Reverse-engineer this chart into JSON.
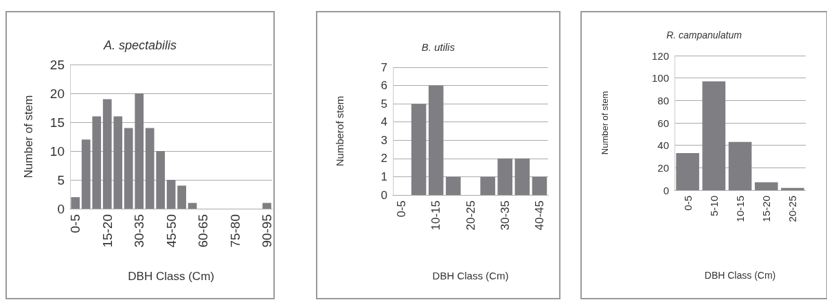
{
  "chart_data": [
    {
      "type": "bar",
      "title": "A. spectabilis",
      "xlabel": "DBH Class (Cm)",
      "ylabel": "Number of stem",
      "categories": [
        "0-5",
        null,
        null,
        "15-20",
        null,
        null,
        "30-35",
        null,
        null,
        "45-50",
        null,
        null,
        "60-65",
        null,
        null,
        "75-80",
        null,
        null,
        "90-95"
      ],
      "values": [
        2,
        12,
        16,
        19,
        16,
        14,
        20,
        14,
        10,
        5,
        4,
        1,
        0,
        0,
        0,
        0,
        0,
        0,
        1
      ],
      "color": "#7f7f83",
      "ylim": [
        0,
        25
      ],
      "yticks": [
        0,
        5,
        10,
        15,
        20,
        25
      ],
      "grid": "y"
    },
    {
      "type": "bar",
      "title": "B. utilis",
      "xlabel": "DBH Class (Cm)",
      "ylabel": "Numberof stem",
      "categories": [
        "0-5",
        null,
        "10-15",
        null,
        "20-25",
        null,
        "30-35",
        null,
        "40-45"
      ],
      "values": [
        0,
        5,
        6,
        1,
        0,
        1,
        2,
        2,
        1
      ],
      "color": "#7f7f83",
      "ylim": [
        0,
        7
      ],
      "yticks": [
        0,
        1,
        2,
        3,
        4,
        5,
        6,
        7
      ],
      "grid": "y"
    },
    {
      "type": "bar",
      "title": "R. campanulatum",
      "xlabel": "DBH Class (Cm)",
      "ylabel": "Number of stem",
      "categories": [
        "0-5",
        "5-10",
        "10-15",
        "15-20",
        "20-25"
      ],
      "values": [
        33,
        97,
        43,
        7,
        2
      ],
      "color": "#7f7f83",
      "ylim": [
        0,
        120
      ],
      "yticks": [
        0,
        20,
        40,
        60,
        80,
        100,
        120
      ],
      "grid": "y"
    }
  ]
}
